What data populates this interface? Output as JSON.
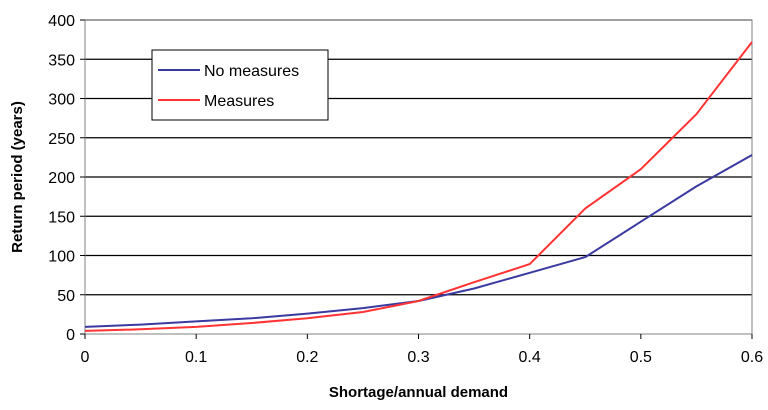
{
  "chart_data": {
    "type": "line",
    "xlabel": "Shortage/annual demand",
    "ylabel": "Return period (years)",
    "xlim": [
      0,
      0.6
    ],
    "ylim": [
      0,
      400
    ],
    "x_ticks": [
      "0",
      "0.1",
      "0.2",
      "0.3",
      "0.4",
      "0.5",
      "0.6"
    ],
    "y_ticks": [
      "0",
      "50",
      "100",
      "150",
      "200",
      "250",
      "300",
      "350",
      "400"
    ],
    "grid": "horizontal",
    "legend_position": "top-left",
    "series": [
      {
        "name": "No measures",
        "color": "#3a3aa0",
        "x": [
          0,
          0.05,
          0.1,
          0.15,
          0.2,
          0.25,
          0.3,
          0.35,
          0.4,
          0.45,
          0.5,
          0.55,
          0.6
        ],
        "y": [
          9,
          12,
          16,
          20,
          26,
          33,
          42,
          58,
          78,
          98,
          143,
          188,
          228
        ]
      },
      {
        "name": "Measures",
        "color": "#ff3333",
        "x": [
          0,
          0.05,
          0.1,
          0.15,
          0.2,
          0.25,
          0.3,
          0.35,
          0.4,
          0.45,
          0.5,
          0.55,
          0.6
        ],
        "y": [
          4,
          6,
          9,
          14,
          20,
          28,
          42,
          66,
          89,
          160,
          210,
          280,
          372
        ]
      }
    ]
  }
}
